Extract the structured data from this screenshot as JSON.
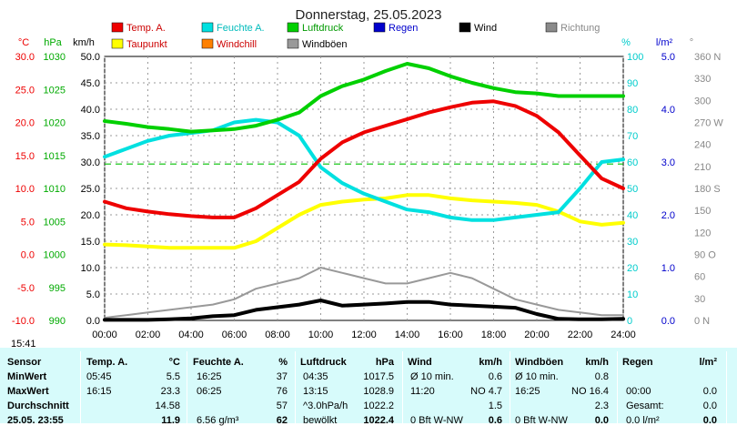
{
  "title": "Donnerstag, 25.05.2023",
  "time_marker": "15:41",
  "axis_units": {
    "temp": "°C",
    "pressure": "hPa",
    "speed": "km/h",
    "humidity": "%",
    "rain": "l/m²",
    "direction": "°"
  },
  "legend": [
    {
      "label": "Temp. A.",
      "color": "#ee0000"
    },
    {
      "label": "Feuchte A.",
      "color": "#00e0e0"
    },
    {
      "label": "Luftdruck",
      "color": "#00d000"
    },
    {
      "label": "Regen",
      "color": "#0000cc"
    },
    {
      "label": "Wind",
      "color": "#000000"
    },
    {
      "label": "Richtung",
      "color": "#8a8a8a"
    },
    {
      "label": "Taupunkt",
      "color": "#ffff00"
    },
    {
      "label": "Windchill",
      "color": "#ff8000"
    },
    {
      "label": "Windböen",
      "color": "#999999"
    }
  ],
  "chart_data": {
    "type": "line",
    "title": "Donnerstag, 25.05.2023",
    "x": [
      "00:00",
      "01:00",
      "02:00",
      "03:00",
      "04:00",
      "05:00",
      "06:00",
      "07:00",
      "08:00",
      "09:00",
      "10:00",
      "11:00",
      "12:00",
      "13:00",
      "14:00",
      "15:00",
      "16:00",
      "17:00",
      "18:00",
      "19:00",
      "20:00",
      "21:00",
      "22:00",
      "23:00",
      "24:00"
    ],
    "x_ticks": [
      "00:00",
      "02:00",
      "04:00",
      "06:00",
      "08:00",
      "10:00",
      "12:00",
      "14:00",
      "16:00",
      "18:00",
      "20:00",
      "22:00",
      "24:00"
    ],
    "xlim": [
      "00:00",
      "24:00"
    ],
    "axes": {
      "temp": {
        "unit": "°C",
        "range": [
          -10,
          30
        ],
        "ticks": [
          "30.0",
          "25.0",
          "20.0",
          "15.0",
          "10.0",
          "5.0",
          "0.0",
          "-5.0",
          "-10.0"
        ]
      },
      "pressure": {
        "unit": "hPa",
        "range": [
          990,
          1030
        ],
        "ticks": [
          "1030",
          "1025",
          "1020",
          "1015",
          "1010",
          "1005",
          "1000",
          "995",
          "990"
        ]
      },
      "speed": {
        "unit": "km/h",
        "range": [
          0,
          50
        ],
        "ticks": [
          "50.0",
          "45.0",
          "40.0",
          "35.0",
          "30.0",
          "25.0",
          "20.0",
          "15.0",
          "10.0",
          "5.0",
          "0.0"
        ]
      },
      "humidity": {
        "unit": "%",
        "range": [
          0,
          100
        ],
        "ticks": [
          "100",
          "90",
          "80",
          "70",
          "60",
          "50",
          "40",
          "30",
          "20",
          "10",
          "0"
        ]
      },
      "rain": {
        "unit": "l/m²",
        "range": [
          0,
          5
        ],
        "ticks": [
          "5.0",
          "4.0",
          "3.0",
          "2.0",
          "1.0",
          "0.0"
        ]
      },
      "direction": {
        "unit": "°",
        "range": [
          0,
          360
        ],
        "ticks": [
          "360 N",
          "330",
          "300",
          "270 W",
          "240",
          "210",
          "180 S",
          "150",
          "120",
          "90 O",
          "60",
          "30",
          "0 N"
        ]
      }
    },
    "reference_line": {
      "axis": "temp",
      "value": 13.7,
      "color": "#00c000"
    },
    "grid": true,
    "series": [
      {
        "name": "Temp. A.",
        "axis": "temp",
        "color": "#ee0000",
        "values": [
          8.0,
          7.0,
          6.5,
          6.1,
          5.8,
          5.6,
          5.6,
          7.0,
          9.0,
          11.0,
          14.5,
          17.0,
          18.5,
          19.5,
          20.5,
          21.5,
          22.3,
          23.0,
          23.2,
          22.5,
          21.0,
          18.5,
          15.0,
          11.5,
          10.0
        ]
      },
      {
        "name": "Feuchte A.",
        "axis": "humidity",
        "color": "#00e0e0",
        "values": [
          62,
          65,
          68,
          70,
          71,
          72,
          75,
          76,
          75,
          70,
          58,
          52,
          48,
          45,
          42,
          41,
          39,
          38,
          38,
          39,
          40,
          41,
          50,
          60,
          61
        ]
      },
      {
        "name": "Luftdruck",
        "axis": "pressure",
        "color": "#00d000",
        "values": [
          1020.2,
          1019.8,
          1019.3,
          1019.0,
          1018.6,
          1018.8,
          1019.0,
          1019.5,
          1020.4,
          1021.5,
          1024.0,
          1025.5,
          1026.5,
          1027.8,
          1028.9,
          1028.2,
          1027.0,
          1026.0,
          1025.2,
          1024.6,
          1024.4,
          1024.0,
          1024.0,
          1024.0,
          1024.0
        ]
      },
      {
        "name": "Taupunkt",
        "axis": "temp",
        "color": "#ffff00",
        "values": [
          1.5,
          1.4,
          1.2,
          1.0,
          1.0,
          1.0,
          1.0,
          2.0,
          4.0,
          6.0,
          7.5,
          8.0,
          8.3,
          8.5,
          9.0,
          9.0,
          8.5,
          8.2,
          8.0,
          7.8,
          7.5,
          6.5,
          5.0,
          4.5,
          4.8
        ]
      },
      {
        "name": "Wind",
        "axis": "speed",
        "color": "#000000",
        "values": [
          0.1,
          0.1,
          0.1,
          0.2,
          0.4,
          0.8,
          1.0,
          2.0,
          2.5,
          3.0,
          3.8,
          2.8,
          3.0,
          3.2,
          3.5,
          3.5,
          3.0,
          2.8,
          2.6,
          2.4,
          1.2,
          0.3,
          0.2,
          0.2,
          0.3
        ]
      },
      {
        "name": "Windböen",
        "axis": "speed",
        "color": "#999999",
        "values": [
          0.5,
          1,
          1.5,
          2,
          2.5,
          3,
          4,
          6,
          7,
          8,
          10,
          9,
          8,
          7,
          7,
          8,
          9,
          8,
          6,
          4,
          3,
          2,
          1.5,
          1,
          1
        ]
      }
    ]
  },
  "table": {
    "headers": [
      {
        "label": "Sensor"
      },
      {
        "label": "Temp. A.",
        "unit": "°C"
      },
      {
        "label": "Feuchte A.",
        "unit": "%"
      },
      {
        "label": "Luftdruck",
        "unit": "hPa"
      },
      {
        "label": "Wind",
        "unit": "km/h"
      },
      {
        "label": "Windböen",
        "unit": "km/h"
      },
      {
        "label": "Regen",
        "unit": "l/m²"
      }
    ],
    "rows": [
      {
        "label": "MinWert",
        "cells": [
          [
            "05:45",
            "5.5"
          ],
          [
            "16:25",
            "37"
          ],
          [
            "04:35",
            "1017.5"
          ],
          [
            "Ø 10 min.",
            "0.6"
          ],
          [
            "Ø 10 min.",
            "0.8"
          ],
          [
            "",
            ""
          ]
        ]
      },
      {
        "label": "MaxWert",
        "cells": [
          [
            "16:15",
            "23.3"
          ],
          [
            "06:25",
            "76"
          ],
          [
            "13:15",
            "1028.9"
          ],
          [
            "11:20",
            "NO 4.7"
          ],
          [
            "16:25",
            "NO 16.4"
          ],
          [
            "00:00",
            "0.0"
          ]
        ]
      },
      {
        "label": "Durchschnitt",
        "cells": [
          [
            "",
            "14.58"
          ],
          [
            "",
            "57"
          ],
          [
            "^3.0hPa/h",
            "1022.2"
          ],
          [
            "",
            "1.5"
          ],
          [
            "",
            "2.3"
          ],
          [
            "Gesamt:",
            "0.0"
          ]
        ]
      },
      {
        "label": "25.05. 23:55",
        "cells": [
          [
            "",
            "11.9"
          ],
          [
            "6.56 g/m³",
            "62"
          ],
          [
            "bewölkt",
            "1022.4"
          ],
          [
            "0 Bft W-NW",
            "0.6"
          ],
          [
            "0 Bft W-NW",
            "0.0"
          ],
          [
            "0.0 l/m²",
            "0.0"
          ]
        ]
      }
    ]
  }
}
